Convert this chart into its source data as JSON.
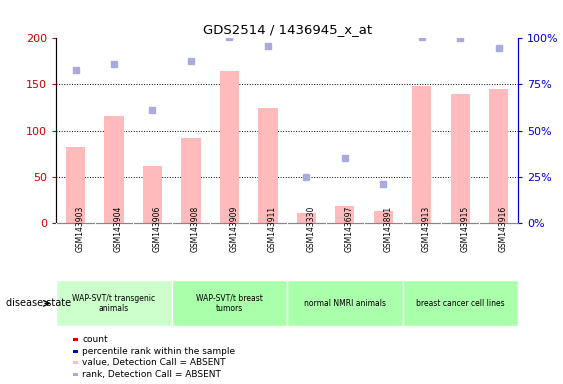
{
  "title": "GDS2514 / 1436945_x_at",
  "samples": [
    "GSM143903",
    "GSM143904",
    "GSM143906",
    "GSM143908",
    "GSM143909",
    "GSM143911",
    "GSM143330",
    "GSM143697",
    "GSM143891",
    "GSM143913",
    "GSM143915",
    "GSM143916"
  ],
  "absent_values": [
    82,
    116,
    62,
    92,
    165,
    125,
    11,
    18,
    13,
    148,
    140,
    145
  ],
  "absent_ranks": [
    83,
    86,
    61,
    88,
    101,
    96,
    25,
    35,
    21,
    101,
    100,
    95
  ],
  "ylim_left": [
    0,
    200
  ],
  "ylim_right": [
    0,
    100
  ],
  "bar_width": 0.5,
  "absent_bar_color": "#ffbbbb",
  "absent_rank_color": "#aaaadd",
  "present_bar_color": "#cc0000",
  "present_rank_color": "#0000cc",
  "tick_color_left": "#cc0000",
  "tick_color_right": "#0000cc",
  "disease_state_label": "disease state",
  "group_labels": [
    "WAP-SVT/t transgenic\nanimals",
    "WAP-SVT/t breast\ntumors",
    "normal NMRI animals",
    "breast cancer cell lines"
  ],
  "group_starts": [
    0,
    3,
    6,
    9
  ],
  "group_ends": [
    3,
    6,
    9,
    12
  ],
  "group_colors": [
    "#ccffcc",
    "#aaffaa",
    "#aaffaa",
    "#aaffaa"
  ],
  "legend_labels": [
    "count",
    "percentile rank within the sample",
    "value, Detection Call = ABSENT",
    "rank, Detection Call = ABSENT"
  ],
  "legend_colors": [
    "#cc0000",
    "#0000cc",
    "#ffbbbb",
    "#aaaadd"
  ]
}
